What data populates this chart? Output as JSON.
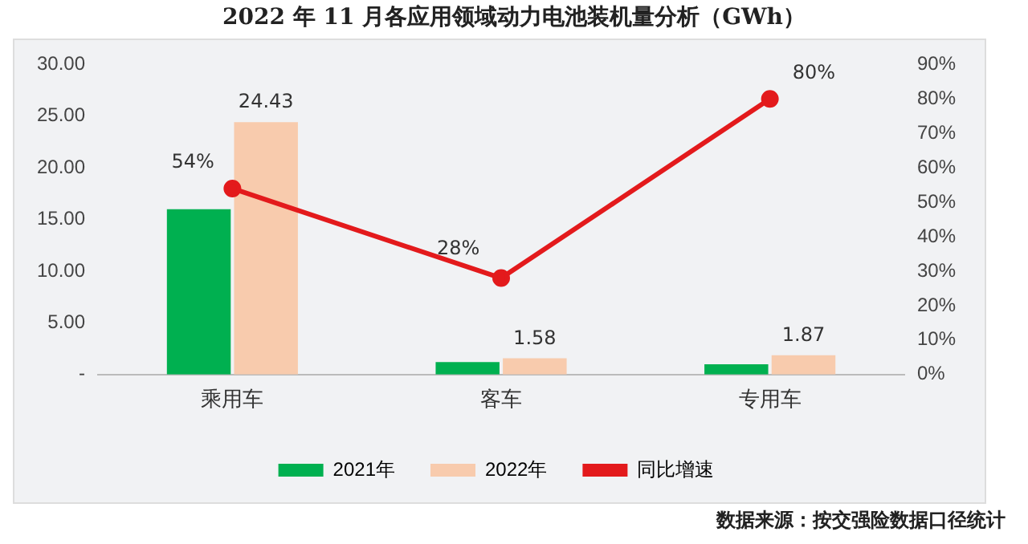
{
  "chart_data": {
    "type": "bar",
    "title": "2022 年 11 月各应用领域动力电池装机量分析（GWh）",
    "categories": [
      "乘用车",
      "客车",
      "专用车"
    ],
    "series": [
      {
        "name": "2021年",
        "color": "#00b050",
        "values": [
          16.0,
          1.2,
          1.0
        ]
      },
      {
        "name": "2022年",
        "color": "#f8cbad",
        "values": [
          24.43,
          1.58,
          1.87
        ],
        "value_labels": [
          "24.43",
          "1.58",
          "1.87"
        ]
      },
      {
        "name": "同比增速",
        "type": "line",
        "axis": "y2",
        "color": "#e31a1c",
        "marker": "circle",
        "values": [
          54,
          28,
          80
        ],
        "value_labels": [
          "54%",
          "28%",
          "80%"
        ]
      }
    ],
    "ylim": [
      0,
      30
    ],
    "yticks": [
      {
        "value": 0,
        "label": "-"
      },
      {
        "value": 5,
        "label": "5.00"
      },
      {
        "value": 10,
        "label": "10.00"
      },
      {
        "value": 15,
        "label": "15.00"
      },
      {
        "value": 20,
        "label": "20.00"
      },
      {
        "value": 25,
        "label": "25.00"
      },
      {
        "value": 30,
        "label": "30.00"
      }
    ],
    "y2lim": [
      0,
      90
    ],
    "y2ticks": [
      {
        "value": 0,
        "label": "0%"
      },
      {
        "value": 10,
        "label": "10%"
      },
      {
        "value": 20,
        "label": "20%"
      },
      {
        "value": 30,
        "label": "30%"
      },
      {
        "value": 40,
        "label": "40%"
      },
      {
        "value": 50,
        "label": "50%"
      },
      {
        "value": 60,
        "label": "60%"
      },
      {
        "value": 70,
        "label": "70%"
      },
      {
        "value": 80,
        "label": "80%"
      },
      {
        "value": 90,
        "label": "90%"
      }
    ],
    "grid": false,
    "legend": "bottom",
    "annotations": [
      "数据来源：按交强险数据口径统计"
    ]
  }
}
